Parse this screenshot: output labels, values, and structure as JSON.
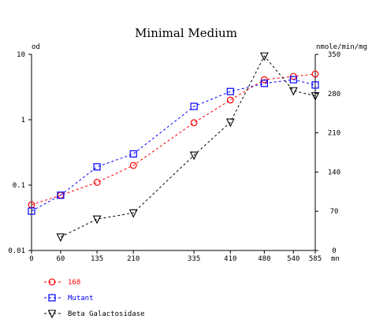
{
  "chart_data": {
    "type": "line",
    "title": "Minimal Medium",
    "xlabel": "mn",
    "ylabel_left": "od",
    "ylabel_right": "nmole/min/mg",
    "x_ticks": [
      0,
      60,
      135,
      210,
      335,
      410,
      480,
      540,
      585
    ],
    "xlim": [
      0,
      585
    ],
    "left_axis": {
      "scale": "log",
      "ylim": [
        0.01,
        10
      ],
      "ticks": [
        "0.01",
        "0.1",
        "1",
        "10"
      ]
    },
    "right_axis": {
      "scale": "linear",
      "ylim": [
        0,
        350
      ],
      "ticks": [
        0,
        70,
        140,
        210,
        280,
        350
      ]
    },
    "legend_position": "bottom-left",
    "grid": false,
    "series": [
      {
        "name": "168",
        "axis": "left",
        "color": "#ff0000",
        "marker": "circle",
        "x": [
          0,
          60,
          135,
          210,
          335,
          410,
          480,
          540,
          585
        ],
        "y": [
          0.05,
          0.07,
          0.11,
          0.2,
          0.9,
          2.0,
          4.1,
          4.6,
          5.0
        ]
      },
      {
        "name": "Mutant",
        "axis": "left",
        "color": "#0000ff",
        "marker": "square",
        "x": [
          0,
          60,
          135,
          210,
          335,
          410,
          480,
          540,
          585
        ],
        "y": [
          0.04,
          0.07,
          0.19,
          0.3,
          1.6,
          2.7,
          3.6,
          4.1,
          3.4
        ]
      },
      {
        "name": "Beta Galactosidase",
        "axis": "right",
        "color": "#000000",
        "marker": "triangle-down",
        "x": [
          60,
          135,
          210,
          335,
          410,
          480,
          540,
          585
        ],
        "y": [
          24,
          56,
          67,
          170,
          229,
          347,
          285,
          276
        ]
      }
    ]
  }
}
